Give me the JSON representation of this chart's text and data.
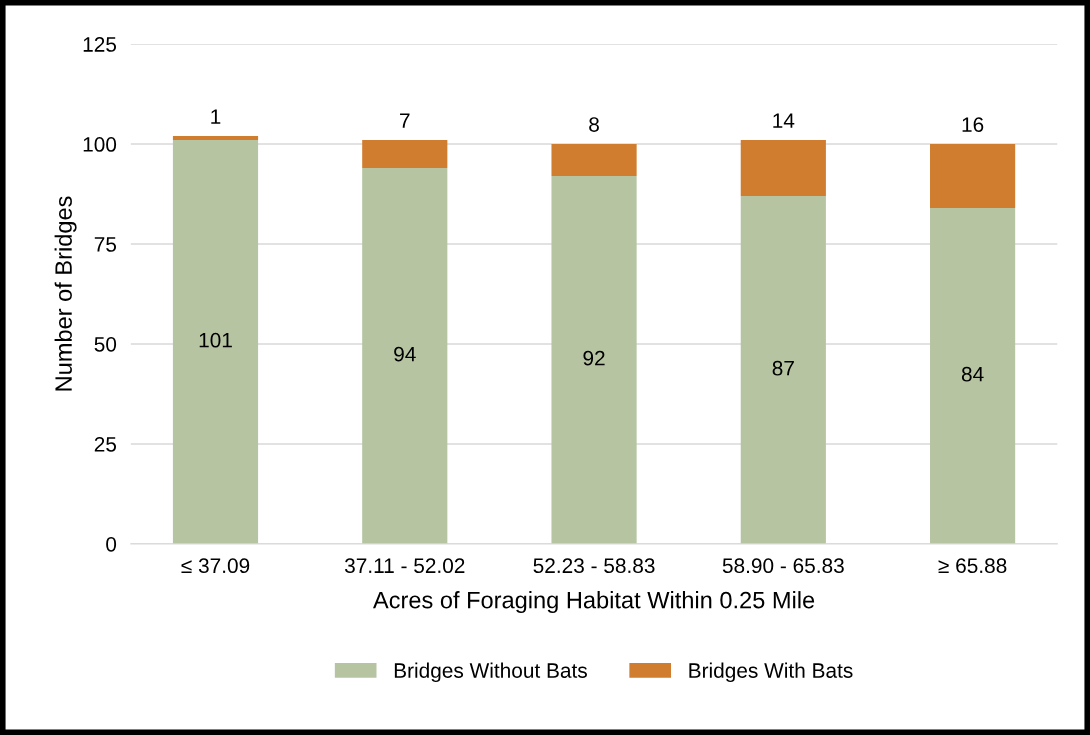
{
  "chart_data": {
    "type": "bar",
    "stacked": true,
    "xlabel": "Acres of Foraging Habitat Within 0.25 Mile",
    "ylabel": "Number of Bridges",
    "categories": [
      "≤ 37.09",
      "37.11 - 52.02",
      "52.23 - 58.83",
      "58.90 - 65.83",
      "≥ 65.88"
    ],
    "series": [
      {
        "name": "Bridges Without Bats",
        "color": "#b6c4a2",
        "values": [
          101,
          94,
          92,
          87,
          84
        ]
      },
      {
        "name": "Bridges With Bats",
        "color": "#d07d2f",
        "values": [
          1,
          7,
          8,
          14,
          16
        ]
      }
    ],
    "ylim": [
      0,
      125
    ],
    "yticks": [
      0,
      25,
      50,
      75,
      100,
      125
    ],
    "grid": "y",
    "legend": "bottom",
    "data_labels": true
  }
}
